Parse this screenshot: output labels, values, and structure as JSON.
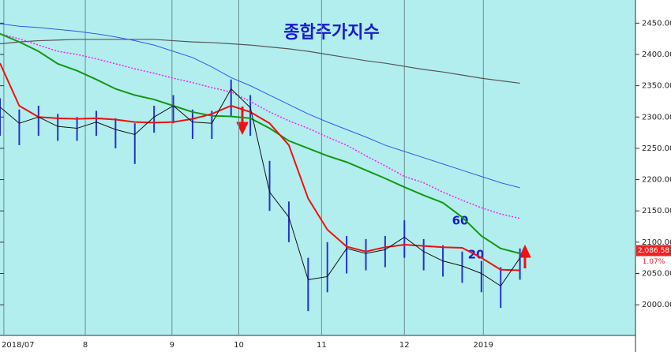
{
  "chart_data": {
    "type": "stock",
    "title": "종합주가지수",
    "annotations": [
      "60",
      "20"
    ],
    "x": [
      0,
      1,
      2,
      3,
      4,
      5,
      6,
      7,
      8,
      9,
      10,
      11,
      12,
      13,
      14,
      15,
      16,
      17,
      18,
      19,
      20,
      21,
      22,
      23,
      24,
      25,
      26,
      27
    ],
    "xlim": [
      0,
      33
    ],
    "xticks": [
      {
        "value": 0.2,
        "label": "2018/07"
      },
      {
        "value": 4.43,
        "label": "8"
      },
      {
        "value": 8.93,
        "label": "9"
      },
      {
        "value": 12.4,
        "label": "10"
      },
      {
        "value": 16.7,
        "label": "11"
      },
      {
        "value": 21.0,
        "label": "12"
      },
      {
        "value": 25.1,
        "label": "2019"
      }
    ],
    "ylim": [
      1951,
      2487
    ],
    "yticks": [
      {
        "value": 2000,
        "label": "2000.00"
      },
      {
        "value": 2050,
        "label": "2050.00"
      },
      {
        "value": 2100,
        "label": "2100.00"
      },
      {
        "value": 2150,
        "label": "2150.00"
      },
      {
        "value": 2200,
        "label": "2200.00"
      },
      {
        "value": 2250,
        "label": "2250.00"
      },
      {
        "value": 2300,
        "label": "2300.00"
      },
      {
        "value": 2350,
        "label": "2350.00"
      },
      {
        "value": 2400,
        "label": "2400.00"
      },
      {
        "value": 2450,
        "label": "2450.00"
      }
    ],
    "bars": {
      "color": "#2233cc",
      "high": [
        2330,
        2312,
        2318,
        2305,
        2300,
        2310,
        2298,
        2290,
        2318,
        2335,
        2312,
        2310,
        2360,
        2335,
        2230,
        2165,
        2075,
        2100,
        2110,
        2105,
        2110,
        2135,
        2105,
        2095,
        2085,
        2070,
        2060,
        2090
      ],
      "low": [
        2270,
        2255,
        2270,
        2262,
        2262,
        2270,
        2250,
        2225,
        2275,
        2290,
        2265,
        2265,
        2300,
        2270,
        2150,
        2100,
        1990,
        2020,
        2050,
        2055,
        2060,
        2075,
        2055,
        2045,
        2035,
        2020,
        1995,
        2040
      ]
    },
    "series": [
      {
        "color": "#555555",
        "width": 1.2,
        "values": [
          2417,
          2420,
          2422,
          2423,
          2424,
          2424,
          2424,
          2424,
          2424,
          2422,
          2420,
          2419,
          2417,
          2415,
          2412,
          2409,
          2405,
          2400,
          2395,
          2390,
          2386,
          2381,
          2376,
          2372,
          2367,
          2362,
          2358,
          2354
        ]
      },
      {
        "color": "#3355ee",
        "width": 1,
        "values": [
          2449,
          2445,
          2443,
          2440,
          2437,
          2433,
          2428,
          2422,
          2415,
          2405,
          2395,
          2380,
          2363,
          2350,
          2335,
          2320,
          2305,
          2292,
          2280,
          2268,
          2255,
          2245,
          2235,
          2225,
          2215,
          2205,
          2195,
          2187
        ]
      },
      {
        "color": "#ee22ee",
        "width": 1.5,
        "dash": true,
        "values": [
          2433,
          2425,
          2415,
          2405,
          2400,
          2393,
          2385,
          2377,
          2370,
          2362,
          2355,
          2347,
          2340,
          2325,
          2308,
          2294,
          2282,
          2268,
          2255,
          2238,
          2222,
          2205,
          2195,
          2180,
          2167,
          2155,
          2145,
          2138
        ]
      },
      {
        "color": "#119911",
        "width": 2,
        "values": [
          2433,
          2420,
          2405,
          2385,
          2374,
          2360,
          2345,
          2335,
          2328,
          2318,
          2308,
          2302,
          2301,
          2298,
          2282,
          2262,
          2250,
          2238,
          2228,
          2215,
          2202,
          2188,
          2175,
          2163,
          2140,
          2110,
          2090,
          2082
        ]
      },
      {
        "color": "#ee1111",
        "width": 2,
        "values": [
          2386,
          2318,
          2300,
          2298,
          2297,
          2298,
          2296,
          2292,
          2291,
          2292,
          2297,
          2305,
          2318,
          2308,
          2290,
          2255,
          2170,
          2120,
          2093,
          2085,
          2092,
          2096,
          2094,
          2092,
          2091,
          2075,
          2056,
          2055
        ]
      },
      {
        "color": "#111111",
        "width": 1,
        "values": [
          2316,
          2290,
          2300,
          2285,
          2282,
          2292,
          2280,
          2272,
          2300,
          2318,
          2292,
          2290,
          2345,
          2315,
          2180,
          2140,
          2040,
          2045,
          2090,
          2082,
          2088,
          2108,
          2085,
          2070,
          2062,
          2050,
          2030,
          2075
        ]
      }
    ],
    "last_price": {
      "value": 2086.58,
      "label": "2,086.58"
    },
    "change": "1.07%"
  }
}
